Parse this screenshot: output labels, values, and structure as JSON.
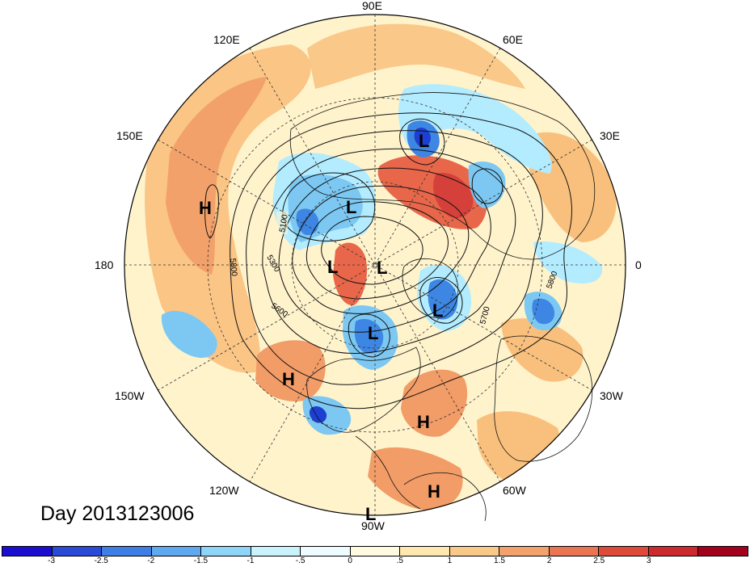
{
  "labels": {
    "day": "Day 2013123006",
    "lon_labels": [
      "90E",
      "60E",
      "30E",
      "0",
      "30W",
      "60W",
      "90W",
      "120W",
      "150W",
      "180",
      "150E",
      "120E"
    ]
  },
  "colors": {
    "ocean_base": "#fff3cc",
    "land_line": "#111111",
    "pos1": "#fde2a6",
    "pos2": "#f9c07d",
    "pos3": "#f29c67",
    "pos4": "#e8674a",
    "pos5": "#d6403a",
    "neg1": "#e6fbff",
    "neg2": "#b3ecff",
    "neg3": "#7cc8f3",
    "neg4": "#3d86e3",
    "neg5": "#1d3fd2"
  },
  "pressure_centers": [
    {
      "label": "L",
      "name": "low-center-siberia-east"
    },
    {
      "label": "L",
      "name": "low-center-siberia-west"
    },
    {
      "label": "L",
      "name": "low-center-europe"
    },
    {
      "label": "L",
      "name": "low-center-arctic-pacific"
    },
    {
      "label": "L",
      "name": "low-center-arctic-pole"
    },
    {
      "label": "L",
      "name": "low-center-greenland"
    },
    {
      "label": "L",
      "name": "low-center-canada"
    },
    {
      "label": "L",
      "name": "low-center-bottom"
    },
    {
      "label": "H",
      "name": "high-center-pacific-west"
    },
    {
      "label": "H",
      "name": "high-center-pacific-east"
    },
    {
      "label": "H",
      "name": "high-center-atlantic"
    },
    {
      "label": "H",
      "name": "high-center-caribbean"
    }
  ],
  "contour_labels": [
    "5100",
    "5300",
    "5600",
    "5800",
    "5700",
    "5800"
  ],
  "colorbar": {
    "colors": [
      "#1a0fd0",
      "#2a4ad8",
      "#3f7ee4",
      "#5ea9ef",
      "#8fd5f8",
      "#c9f2fc",
      "#eefcff",
      "#fffbe0",
      "#fde9b0",
      "#f9c98a",
      "#f3a26e",
      "#ea7553",
      "#de4b3b",
      "#cc2a2e",
      "#a3001d"
    ],
    "ticks": [
      "-3",
      "-2.5",
      "-2",
      "-1.5",
      "-1",
      "-.5",
      "0",
      ".5",
      "1",
      "1.5",
      "2",
      "2.5",
      "3"
    ]
  }
}
